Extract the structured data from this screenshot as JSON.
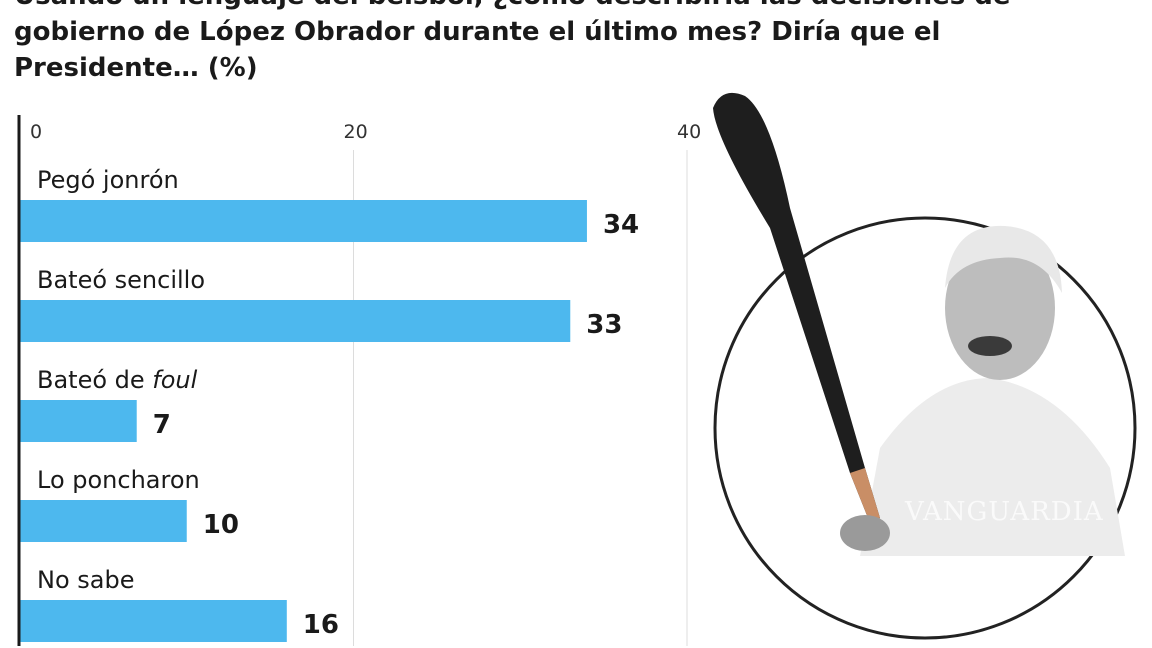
{
  "chart_data": {
    "type": "bar",
    "orientation": "horizontal",
    "title": "Usando un lenguaje del beisbol, ¿cómo describiría las decisiones de gobierno de López Obrador durante el último mes? Diría que el Presidente… (%)",
    "categories": [
      "Pegó jonrón",
      "Bateó sencillo",
      "Bateó de foul",
      "Lo poncharon",
      "No sabe"
    ],
    "values": [
      34,
      33,
      7,
      10,
      16
    ],
    "xlim": [
      0,
      40
    ],
    "xticks": [
      "0",
      "20",
      "40"
    ],
    "grid": true,
    "bar_color": "#4db8ee",
    "watermark": "VANGUARDIA"
  }
}
